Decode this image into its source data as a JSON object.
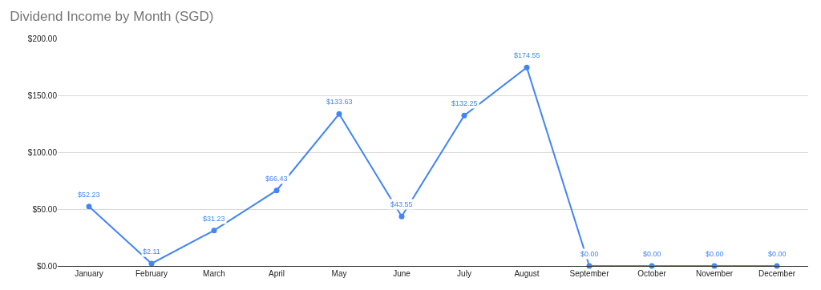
{
  "chart_data": {
    "type": "line",
    "title": "Dividend Income by Month (SGD)",
    "categories": [
      "January",
      "February",
      "March",
      "April",
      "May",
      "June",
      "July",
      "August",
      "September",
      "October",
      "November",
      "December"
    ],
    "series": [
      {
        "color": "#4285f4",
        "values": [
          52.23,
          2.11,
          31.23,
          66.43,
          133.63,
          43.55,
          132.25,
          174.55,
          0,
          0,
          0,
          0
        ],
        "value_labels": [
          "$52.23",
          "$2.11",
          "$31.23",
          "$66.43",
          "$133.63",
          "$43.55",
          "$132.25",
          "$174.55",
          "$0.00",
          "$0.00",
          "$0.00",
          "$0.00"
        ]
      }
    ],
    "ylim": [
      0,
      200
    ],
    "yticks": [
      {
        "value": 0,
        "label": "$0.00"
      },
      {
        "value": 50,
        "label": "$50.00"
      },
      {
        "value": 100,
        "label": "$100.00"
      },
      {
        "value": 150,
        "label": "$150.00"
      },
      {
        "value": 200,
        "label": "$200.00"
      }
    ],
    "grid": "y",
    "legend": false,
    "marker": "circle",
    "line_style": "solid"
  }
}
